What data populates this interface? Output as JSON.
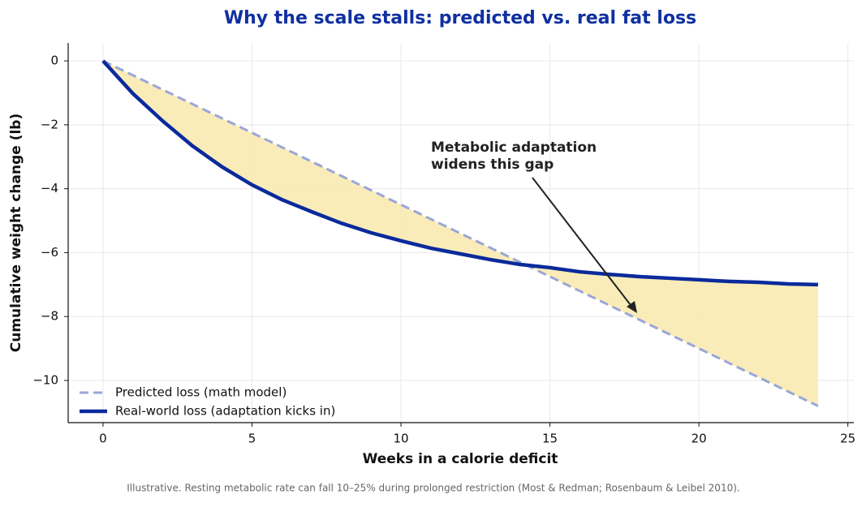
{
  "chart_data": {
    "type": "line",
    "title": "Why the scale stalls: predicted vs. real fat loss",
    "xlabel": "Weeks in a calorie deficit",
    "ylabel": "Cumulative weight change (lb)",
    "x": [
      0,
      1,
      2,
      3,
      4,
      5,
      6,
      7,
      8,
      9,
      10,
      11,
      12,
      13,
      14,
      15,
      16,
      17,
      18,
      19,
      20,
      21,
      22,
      23,
      24
    ],
    "series": [
      {
        "name": "Predicted loss (math model)",
        "color": "#9aa6d8",
        "dashed": true,
        "values": [
          0,
          -0.45,
          -0.9,
          -1.35,
          -1.8,
          -2.25,
          -2.7,
          -3.15,
          -3.6,
          -4.05,
          -4.5,
          -4.95,
          -5.4,
          -5.85,
          -6.3,
          -6.75,
          -7.2,
          -7.65,
          -8.1,
          -8.55,
          -9.0,
          -9.45,
          -9.9,
          -10.35,
          -10.8
        ]
      },
      {
        "name": "Real-world loss (adaptation kicks in)",
        "color": "#0a2a9c",
        "dashed": false,
        "values": [
          0,
          -1.02,
          -1.88,
          -2.66,
          -3.32,
          -3.88,
          -4.34,
          -4.72,
          -5.08,
          -5.38,
          -5.63,
          -5.86,
          -6.04,
          -6.22,
          -6.37,
          -6.47,
          -6.6,
          -6.68,
          -6.75,
          -6.8,
          -6.85,
          -6.9,
          -6.93,
          -6.98,
          -7.0
        ]
      }
    ],
    "fill_color": "#f9eab0",
    "xlim": [
      -1.17,
      25.2
    ],
    "ylim": [
      -11.32,
      0.56
    ],
    "xticks": [
      0,
      5,
      10,
      15,
      20,
      25
    ],
    "yticks": [
      {
        "value": 0,
        "label": "0"
      },
      {
        "value": -2,
        "label": "−2"
      },
      {
        "value": -4,
        "label": "−4"
      },
      {
        "value": -6,
        "label": "−6"
      },
      {
        "value": -8,
        "label": "−8"
      },
      {
        "value": -10,
        "label": "−10"
      }
    ],
    "grid": true,
    "legend": "lower left",
    "annotation": [
      "Metabolic adaptation",
      "widens this gap"
    ],
    "footnote": "Illustrative. Resting metabolic rate can fall 10–25% during prolonged restriction (Most & Redman; Rosenbaum & Leibel 2010)."
  }
}
